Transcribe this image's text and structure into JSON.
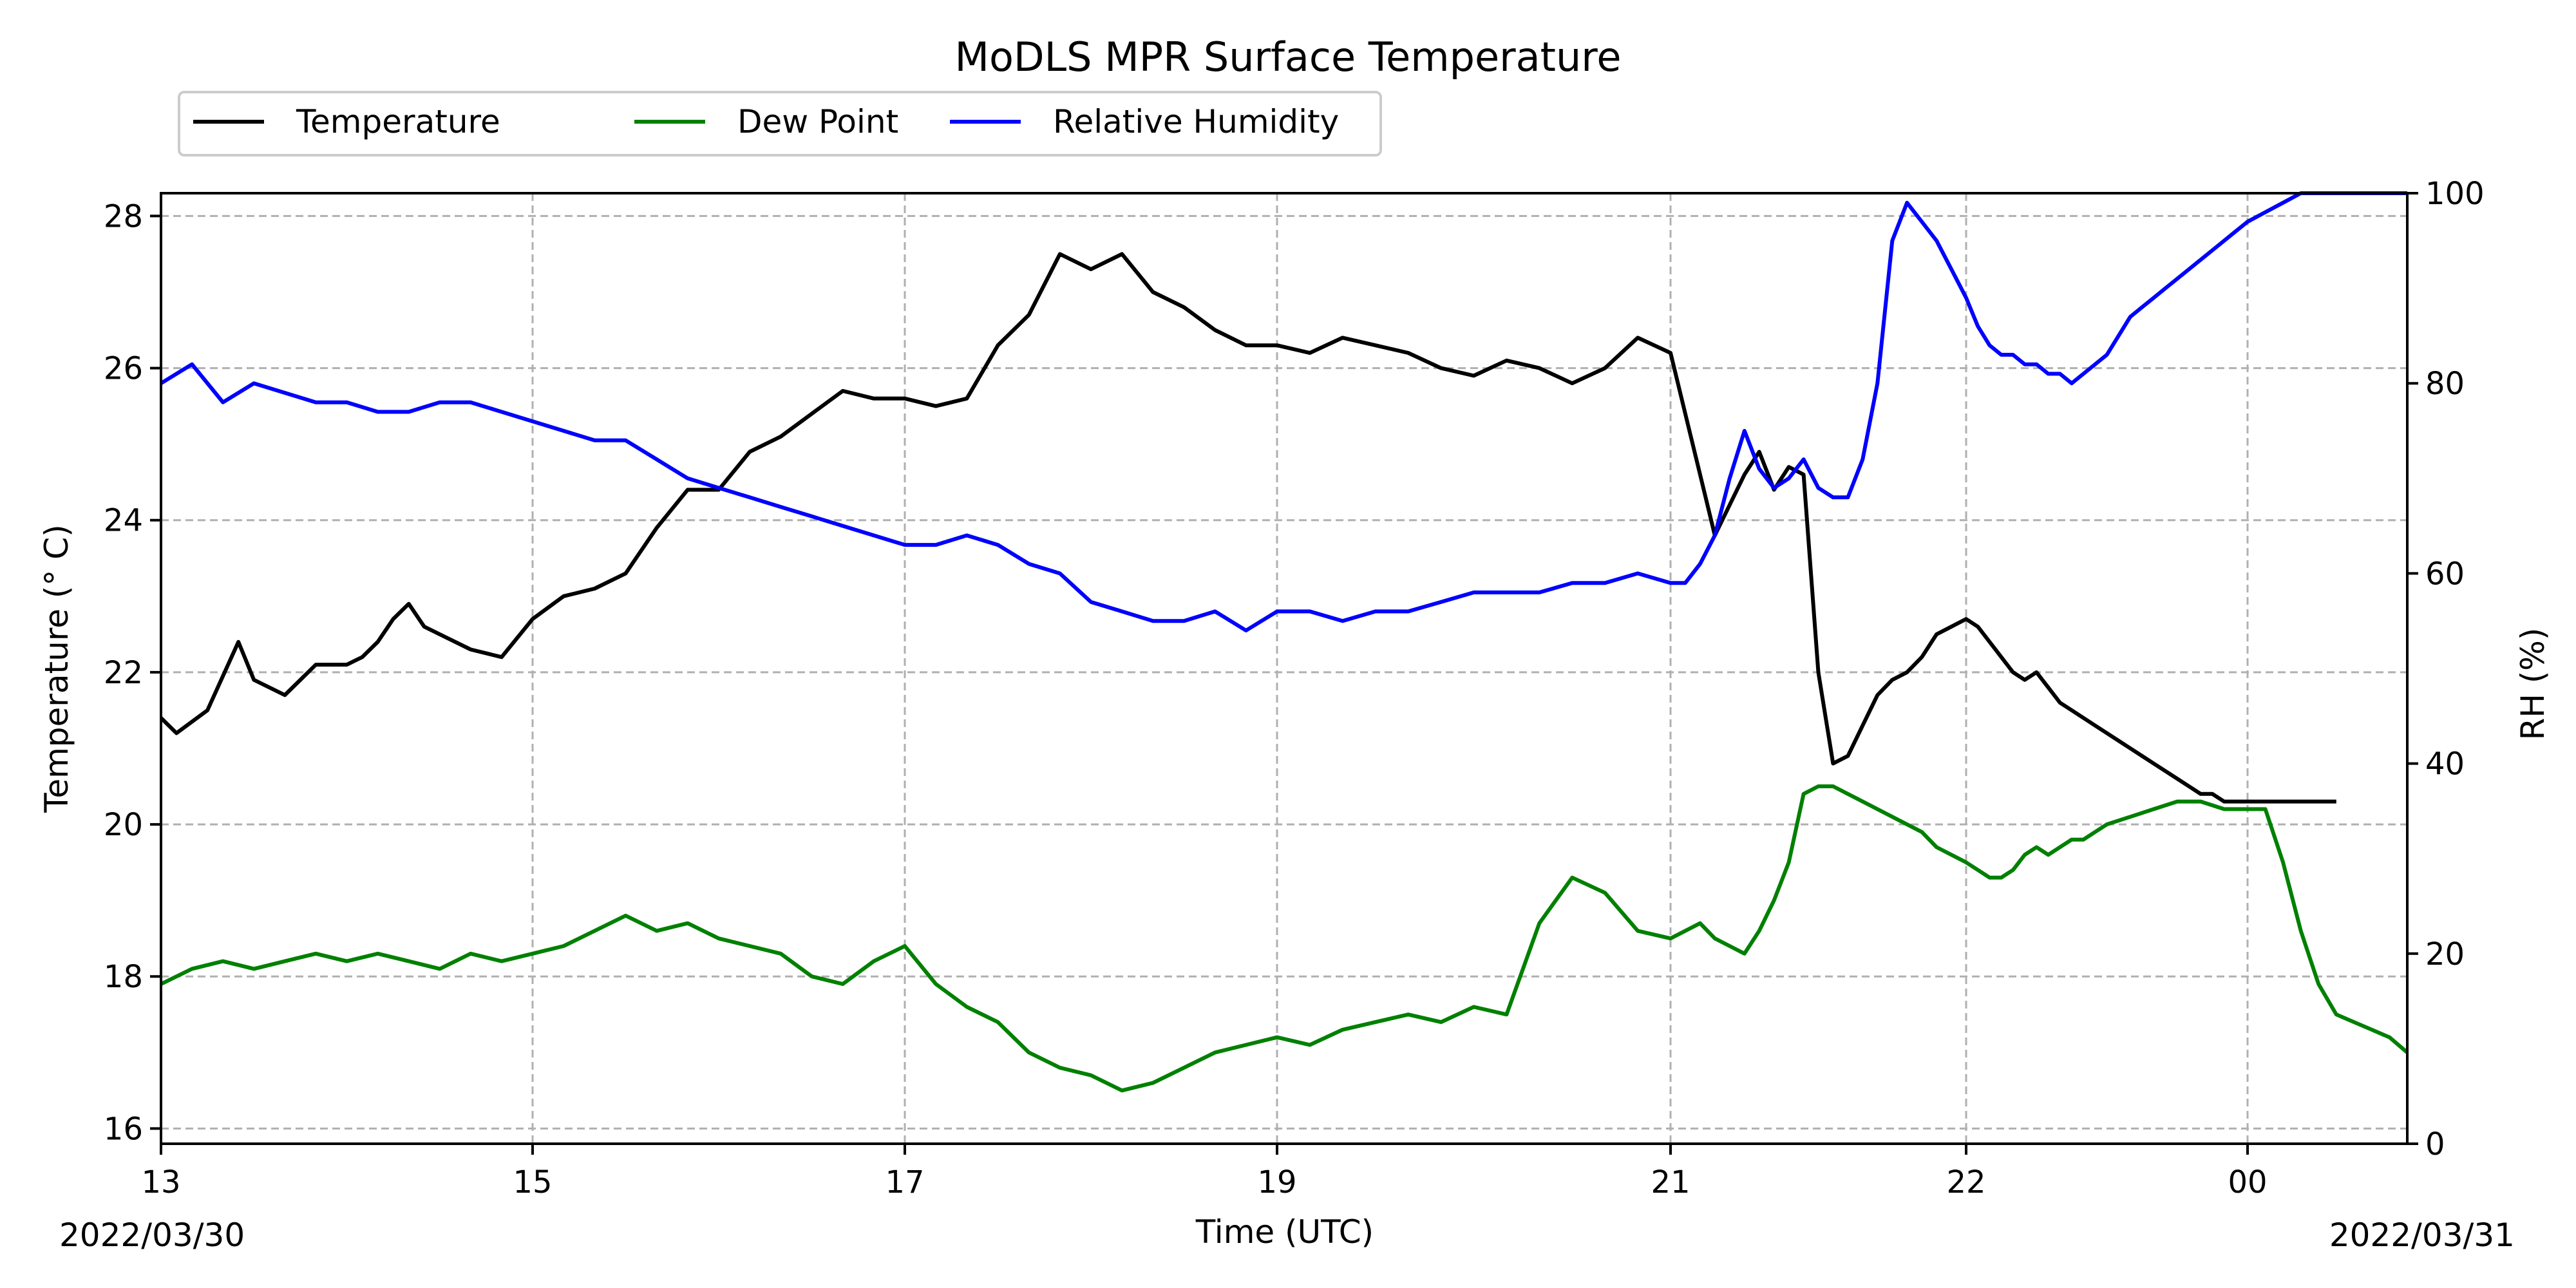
{
  "chart_data": {
    "type": "line",
    "title": "MoDLS MPR Surface Temperature",
    "xlabel": "Time (UTC)",
    "ylabel_left": "Temperature ($^\\circ$C)",
    "ylabel_left_display": "Temperature (° C)",
    "ylabel_right": "RH (%)",
    "start_date_label": "2022/03/30",
    "end_date_label": "2022/03/31",
    "x_ticks": [
      {
        "label": "13",
        "time": "2022-03-30 13:00"
      },
      {
        "label": "15",
        "time": "2022-03-30 15:00"
      },
      {
        "label": "17",
        "time": "2022-03-30 17:00"
      },
      {
        "label": "19",
        "time": "2022-03-30 19:00"
      },
      {
        "label": "21",
        "time": "2022-03-30 21:00"
      },
      {
        "label": "22",
        "time": "2022-03-30 22:00"
      },
      {
        "label": "00",
        "time": "2022-03-31 00:00"
      }
    ],
    "xlim": [
      "2022-03-30 13:00",
      "2022-03-31 00:45"
    ],
    "ylim_left": [
      15.8,
      28.3
    ],
    "ylim_right": [
      0,
      100
    ],
    "y_ticks_left": [
      16,
      18,
      20,
      22,
      24,
      26,
      28
    ],
    "y_ticks_right": [
      0,
      20,
      40,
      60,
      80,
      100
    ],
    "grid": true,
    "legend_position": "above plot, top-left",
    "series": [
      {
        "name": "Temperature",
        "axis": "left",
        "color": "#000000",
        "x": [
          "13:00",
          "13:05",
          "13:15",
          "13:25",
          "13:30",
          "13:40",
          "13:45",
          "13:50",
          "14:00",
          "14:05",
          "14:10",
          "14:15",
          "14:20",
          "14:25",
          "14:30",
          "14:40",
          "14:50",
          "15:00",
          "15:10",
          "15:20",
          "15:30",
          "15:40",
          "15:50",
          "16:00",
          "16:10",
          "16:20",
          "16:30",
          "16:40",
          "16:50",
          "17:00",
          "17:10",
          "17:20",
          "17:30",
          "17:40",
          "17:50",
          "18:00",
          "18:10",
          "18:20",
          "18:30",
          "18:40",
          "18:50",
          "19:00",
          "19:10",
          "19:20",
          "19:30",
          "19:40",
          "19:50",
          "20:00",
          "20:10",
          "20:20",
          "20:30",
          "20:40",
          "20:50",
          "21:00",
          "21:03",
          "21:06",
          "21:09",
          "21:12",
          "21:15",
          "21:18",
          "21:21",
          "21:24",
          "21:27",
          "21:30",
          "21:33",
          "21:36",
          "21:39",
          "21:42",
          "21:45",
          "21:48",
          "21:51",
          "21:54",
          "21:57",
          "22:00",
          "22:05",
          "22:10",
          "22:15",
          "22:20",
          "22:25",
          "22:30",
          "22:35",
          "22:40",
          "22:45",
          "22:50",
          "22:55",
          "23:00",
          "23:05",
          "23:10",
          "23:15",
          "23:20",
          "23:25",
          "23:30",
          "23:35",
          "23:40",
          "23:45",
          "23:50",
          "23:55",
          "00:00",
          "00:05",
          "00:10",
          "00:15",
          "00:20",
          "00:25"
        ],
        "y": [
          21.4,
          21.2,
          21.5,
          22.4,
          21.9,
          21.7,
          21.9,
          22.1,
          22.1,
          22.2,
          22.4,
          22.7,
          22.9,
          22.6,
          22.5,
          22.3,
          22.2,
          22.7,
          23.0,
          23.1,
          23.3,
          23.9,
          24.4,
          24.4,
          24.9,
          25.1,
          25.4,
          25.7,
          25.6,
          25.6,
          25.5,
          25.6,
          26.3,
          26.7,
          27.5,
          27.3,
          27.5,
          27.0,
          26.8,
          26.5,
          26.3,
          26.3,
          26.2,
          26.4,
          26.3,
          26.2,
          26.0,
          25.9,
          26.1,
          26.0,
          25.8,
          26.0,
          26.4,
          26.2,
          25.4,
          24.6,
          23.8,
          24.2,
          24.6,
          24.9,
          24.4,
          24.7,
          24.6,
          22.0,
          20.8,
          20.9,
          21.3,
          21.7,
          21.9,
          22.0,
          22.2,
          22.5,
          22.6,
          22.7,
          22.6,
          22.4,
          22.2,
          22.0,
          21.9,
          22.0,
          21.8,
          21.6,
          21.5,
          21.4,
          21.3,
          21.2,
          21.1,
          21.0,
          20.9,
          20.8,
          20.7,
          20.6,
          20.5,
          20.4,
          20.4,
          20.3,
          20.3,
          20.3,
          20.3,
          20.3,
          20.3,
          20.3,
          20.3
        ]
      },
      {
        "name": "Dew Point",
        "axis": "left",
        "color": "#008000",
        "x": [
          "13:00",
          "13:10",
          "13:20",
          "13:30",
          "13:40",
          "13:50",
          "14:00",
          "14:10",
          "14:20",
          "14:30",
          "14:40",
          "14:50",
          "15:00",
          "15:10",
          "15:20",
          "15:30",
          "15:40",
          "15:50",
          "16:00",
          "16:10",
          "16:20",
          "16:30",
          "16:40",
          "16:50",
          "17:00",
          "17:10",
          "17:20",
          "17:30",
          "17:40",
          "17:50",
          "18:00",
          "18:10",
          "18:20",
          "18:30",
          "18:40",
          "18:50",
          "19:00",
          "19:10",
          "19:20",
          "19:30",
          "19:40",
          "19:50",
          "20:00",
          "20:10",
          "20:20",
          "20:30",
          "20:40",
          "20:50",
          "21:00",
          "21:03",
          "21:06",
          "21:09",
          "21:12",
          "21:15",
          "21:18",
          "21:21",
          "21:24",
          "21:27",
          "21:30",
          "21:33",
          "21:36",
          "21:39",
          "21:42",
          "21:45",
          "21:48",
          "21:51",
          "21:54",
          "21:57",
          "22:00",
          "22:05",
          "22:10",
          "22:15",
          "22:20",
          "22:25",
          "22:30",
          "22:35",
          "22:40",
          "22:45",
          "22:50",
          "22:55",
          "23:00",
          "23:10",
          "23:20",
          "23:30",
          "23:40",
          "23:50",
          "00:00",
          "00:05",
          "00:10",
          "00:15",
          "00:20",
          "00:25",
          "00:30",
          "00:35",
          "00:40",
          "00:45"
        ],
        "y": [
          17.9,
          18.1,
          18.2,
          18.1,
          18.2,
          18.3,
          18.2,
          18.3,
          18.2,
          18.1,
          18.3,
          18.2,
          18.3,
          18.4,
          18.6,
          18.8,
          18.6,
          18.7,
          18.5,
          18.4,
          18.3,
          18.0,
          17.9,
          18.2,
          18.4,
          17.9,
          17.6,
          17.4,
          17.0,
          16.8,
          16.7,
          16.5,
          16.6,
          16.8,
          17.0,
          17.1,
          17.2,
          17.1,
          17.3,
          17.4,
          17.5,
          17.4,
          17.6,
          17.5,
          18.7,
          19.3,
          19.1,
          18.6,
          18.5,
          18.6,
          18.7,
          18.5,
          18.4,
          18.3,
          18.6,
          19.0,
          19.5,
          20.4,
          20.5,
          20.5,
          20.4,
          20.3,
          20.2,
          20.1,
          20.0,
          19.9,
          19.7,
          19.6,
          19.5,
          19.4,
          19.3,
          19.3,
          19.4,
          19.6,
          19.7,
          19.6,
          19.7,
          19.8,
          19.8,
          19.9,
          20.0,
          20.1,
          20.2,
          20.3,
          20.3,
          20.2,
          20.2,
          20.2,
          19.5,
          18.6,
          17.9,
          17.5,
          17.4,
          17.3,
          17.2,
          17.0
        ]
      },
      {
        "name": "Relative Humidity",
        "axis": "right",
        "color": "#0000ff",
        "x": [
          "13:00",
          "13:05",
          "13:10",
          "13:20",
          "13:30",
          "13:40",
          "13:50",
          "14:00",
          "14:10",
          "14:20",
          "14:30",
          "14:40",
          "14:50",
          "15:00",
          "15:10",
          "15:20",
          "15:30",
          "15:40",
          "15:50",
          "16:00",
          "16:10",
          "16:20",
          "16:30",
          "16:40",
          "16:50",
          "17:00",
          "17:10",
          "17:20",
          "17:30",
          "17:40",
          "17:50",
          "18:00",
          "18:10",
          "18:20",
          "18:30",
          "18:40",
          "18:50",
          "19:00",
          "19:10",
          "19:20",
          "19:30",
          "19:40",
          "19:50",
          "20:00",
          "20:10",
          "20:20",
          "20:30",
          "20:40",
          "20:50",
          "21:00",
          "21:03",
          "21:06",
          "21:09",
          "21:12",
          "21:15",
          "21:18",
          "21:21",
          "21:24",
          "21:27",
          "21:30",
          "21:33",
          "21:36",
          "21:39",
          "21:42",
          "21:45",
          "21:48",
          "21:51",
          "21:54",
          "21:57",
          "22:00",
          "22:05",
          "22:10",
          "22:15",
          "22:20",
          "22:25",
          "22:30",
          "22:35",
          "22:40",
          "22:45",
          "22:50",
          "22:55",
          "23:00",
          "23:05",
          "23:10",
          "23:15",
          "23:20",
          "23:25",
          "23:30",
          "23:35",
          "23:40",
          "23:45",
          "23:50",
          "23:55",
          "00:00",
          "00:05",
          "00:10",
          "00:15",
          "00:20",
          "00:25",
          "00:30",
          "00:35",
          "00:40",
          "00:45"
        ],
        "y": [
          80,
          81,
          82,
          78,
          80,
          79,
          78,
          78,
          77,
          77,
          78,
          78,
          77,
          76,
          75,
          74,
          74,
          72,
          70,
          69,
          68,
          67,
          66,
          65,
          64,
          63,
          63,
          64,
          63,
          61,
          60,
          57,
          56,
          55,
          55,
          56,
          54,
          56,
          56,
          55,
          56,
          56,
          57,
          58,
          58,
          58,
          59,
          59,
          60,
          59,
          59,
          61,
          64,
          70,
          75,
          71,
          69,
          70,
          72,
          69,
          68,
          68,
          72,
          80,
          95,
          99,
          97,
          95,
          92,
          89,
          86,
          84,
          83,
          83,
          82,
          82,
          81,
          81,
          80,
          81,
          82,
          83,
          85,
          87,
          88,
          89,
          90,
          91,
          92,
          93,
          94,
          95,
          96,
          97,
          98,
          99,
          100,
          100,
          100,
          100,
          100,
          100,
          100
        ]
      }
    ]
  }
}
